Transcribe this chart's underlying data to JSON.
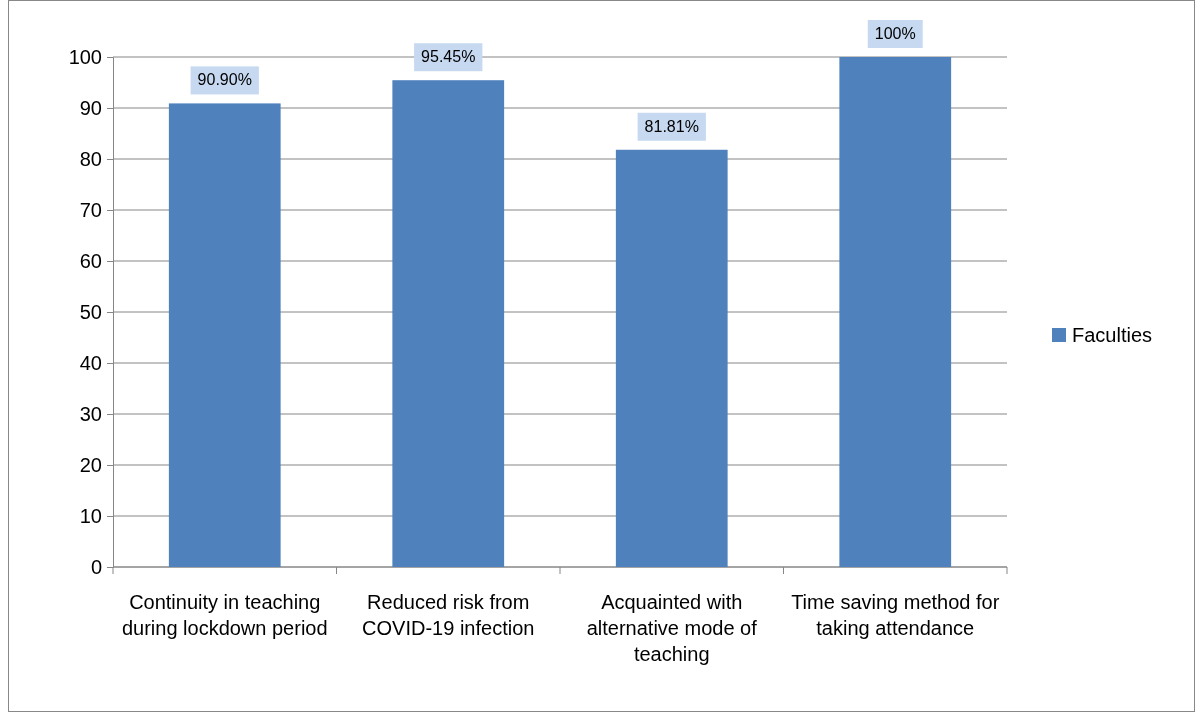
{
  "chart_data": {
    "type": "bar",
    "categories": [
      "Continuity in teaching during lockdown period",
      "Reduced risk from COVID-19 infection",
      "Acquainted with alternative mode of teaching",
      "Time saving method for taking attendance"
    ],
    "series": [
      {
        "name": "Faculties",
        "color": "#4f81bd",
        "values": [
          90.9,
          95.45,
          81.81,
          100
        ],
        "value_labels": [
          "90.90%",
          "95.45%",
          "81.81%",
          "100%"
        ]
      }
    ],
    "ylim": [
      0,
      100
    ],
    "yticks": [
      0,
      10,
      20,
      30,
      40,
      50,
      60,
      70,
      80,
      90,
      100
    ],
    "grid": "y",
    "legend": "right"
  }
}
